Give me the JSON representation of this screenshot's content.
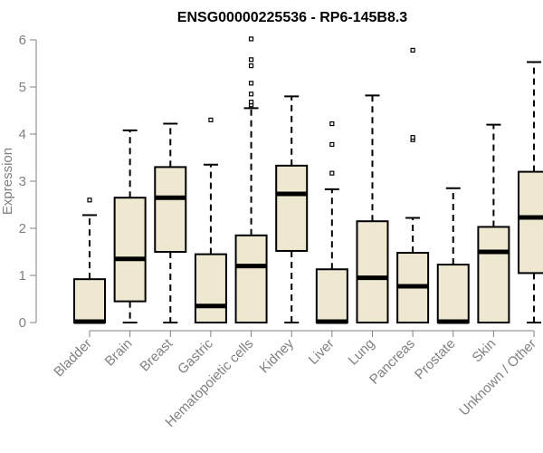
{
  "chart_data": {
    "type": "box",
    "title": "ENSG00000225536 - RP6-145B8.3",
    "xlabel": "",
    "ylabel": "Expression",
    "ylim": [
      0,
      6
    ],
    "yticks": [
      0,
      1,
      2,
      3,
      4,
      5,
      6
    ],
    "grid": false,
    "box_fill": "#EFE8D1",
    "box_stroke": "#000000",
    "axis_color": "#808080",
    "categories": [
      "Bladder",
      "Brain",
      "Breast",
      "Gastric",
      "Hematopoietic cells",
      "Kidney",
      "Liver",
      "Lung",
      "Pancreas",
      "Prostate",
      "Skin",
      "Unknown / Other"
    ],
    "boxes": [
      {
        "whisker_low": 0,
        "q1": 0,
        "median": 0.02,
        "q3": 0.92,
        "whisker_high": 2.28,
        "outliers": [
          2.6
        ]
      },
      {
        "whisker_low": 0,
        "q1": 0.45,
        "median": 1.35,
        "q3": 2.65,
        "whisker_high": 4.08,
        "outliers": []
      },
      {
        "whisker_low": 0,
        "q1": 1.5,
        "median": 2.65,
        "q3": 3.3,
        "whisker_high": 4.22,
        "outliers": []
      },
      {
        "whisker_low": 0,
        "q1": 0,
        "median": 0.35,
        "q3": 1.45,
        "whisker_high": 3.35,
        "outliers": [
          4.3
        ]
      },
      {
        "whisker_low": 0,
        "q1": 0,
        "median": 1.2,
        "q3": 1.85,
        "whisker_high": 4.55,
        "outliers": [
          4.62,
          4.68,
          4.85,
          5.08,
          5.45,
          5.58,
          6.02
        ]
      },
      {
        "whisker_low": 0,
        "q1": 1.52,
        "median": 2.73,
        "q3": 3.33,
        "whisker_high": 4.8,
        "outliers": []
      },
      {
        "whisker_low": 0,
        "q1": 0,
        "median": 0.02,
        "q3": 1.13,
        "whisker_high": 2.83,
        "outliers": [
          3.17,
          3.78,
          4.22
        ]
      },
      {
        "whisker_low": 0,
        "q1": 0,
        "median": 0.95,
        "q3": 2.15,
        "whisker_high": 4.82,
        "outliers": []
      },
      {
        "whisker_low": 0,
        "q1": 0,
        "median": 0.77,
        "q3": 1.48,
        "whisker_high": 2.22,
        "outliers": [
          3.88,
          3.93,
          5.78
        ]
      },
      {
        "whisker_low": 0,
        "q1": 0,
        "median": 0.02,
        "q3": 1.23,
        "whisker_high": 2.85,
        "outliers": []
      },
      {
        "whisker_low": 0,
        "q1": 0,
        "median": 1.5,
        "q3": 2.03,
        "whisker_high": 4.2,
        "outliers": []
      },
      {
        "whisker_low": 0,
        "q1": 1.05,
        "median": 2.23,
        "q3": 3.2,
        "whisker_high": 5.53,
        "outliers": []
      }
    ]
  }
}
